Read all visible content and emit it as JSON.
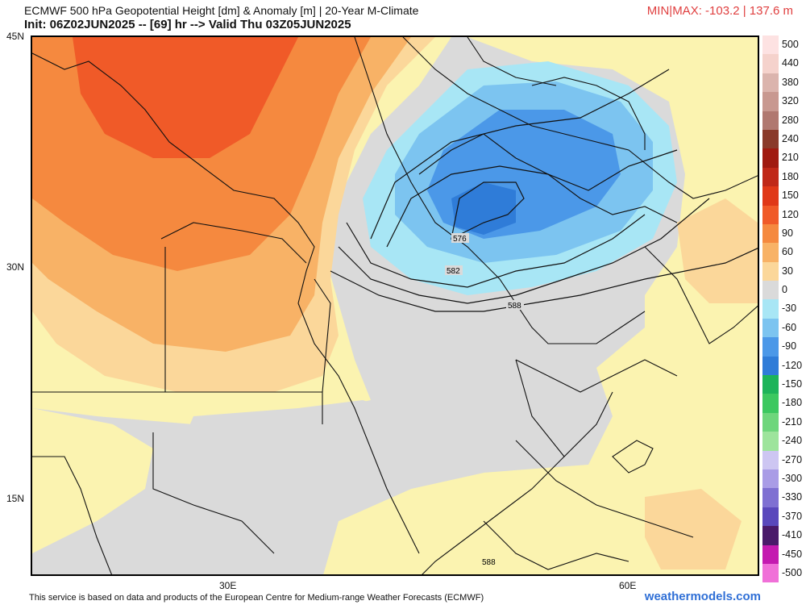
{
  "header": {
    "title": "ECMWF 500 hPa Geopotential Height [dm] & Anomaly [m] | 20-Year M-Climate",
    "init_line": "Init: 06Z02JUN2025 -- [69] hr --> Valid Thu 03Z05JUN2025",
    "minmax": "MIN|MAX: -103.2 | 137.6 m"
  },
  "axes": {
    "lat_labels": [
      "45N",
      "30N",
      "15N"
    ],
    "lon_labels": [
      "30E",
      "60E"
    ]
  },
  "contours": {
    "labels": [
      "576",
      "582",
      "588",
      "588"
    ]
  },
  "colorbar": {
    "labels": [
      "500",
      "440",
      "380",
      "320",
      "280",
      "240",
      "210",
      "180",
      "150",
      "120",
      "90",
      "60",
      "30",
      "0",
      "-30",
      "-60",
      "-90",
      "-120",
      "-150",
      "-180",
      "-210",
      "-240",
      "-270",
      "-300",
      "-330",
      "-370",
      "-410",
      "-450",
      "-500"
    ],
    "colors": [
      "#fde2e2",
      "#f5d2cc",
      "#dbb4ad",
      "#c89890",
      "#b07870",
      "#8a3a2a",
      "#a01a10",
      "#c02818",
      "#e03818",
      "#f05a28",
      "#f5893f",
      "#f8b266",
      "#fbd79a",
      "#dadada",
      "#a8e6f5",
      "#7cc4f0",
      "#4b98e8",
      "#2f7cd8",
      "#1db45a",
      "#3cc860",
      "#6ed67c",
      "#9de49c",
      "#cdc6f2",
      "#a99ce6",
      "#7f70d2",
      "#5a48bc",
      "#4a1a6a",
      "#c41ab0",
      "#f070d8"
    ]
  },
  "footer": {
    "disclaimer": "This service is based on data and products of the European Centre for Medium-range Weather Forecasts (ECMWF)",
    "watermark": "weathermodels.com"
  }
}
